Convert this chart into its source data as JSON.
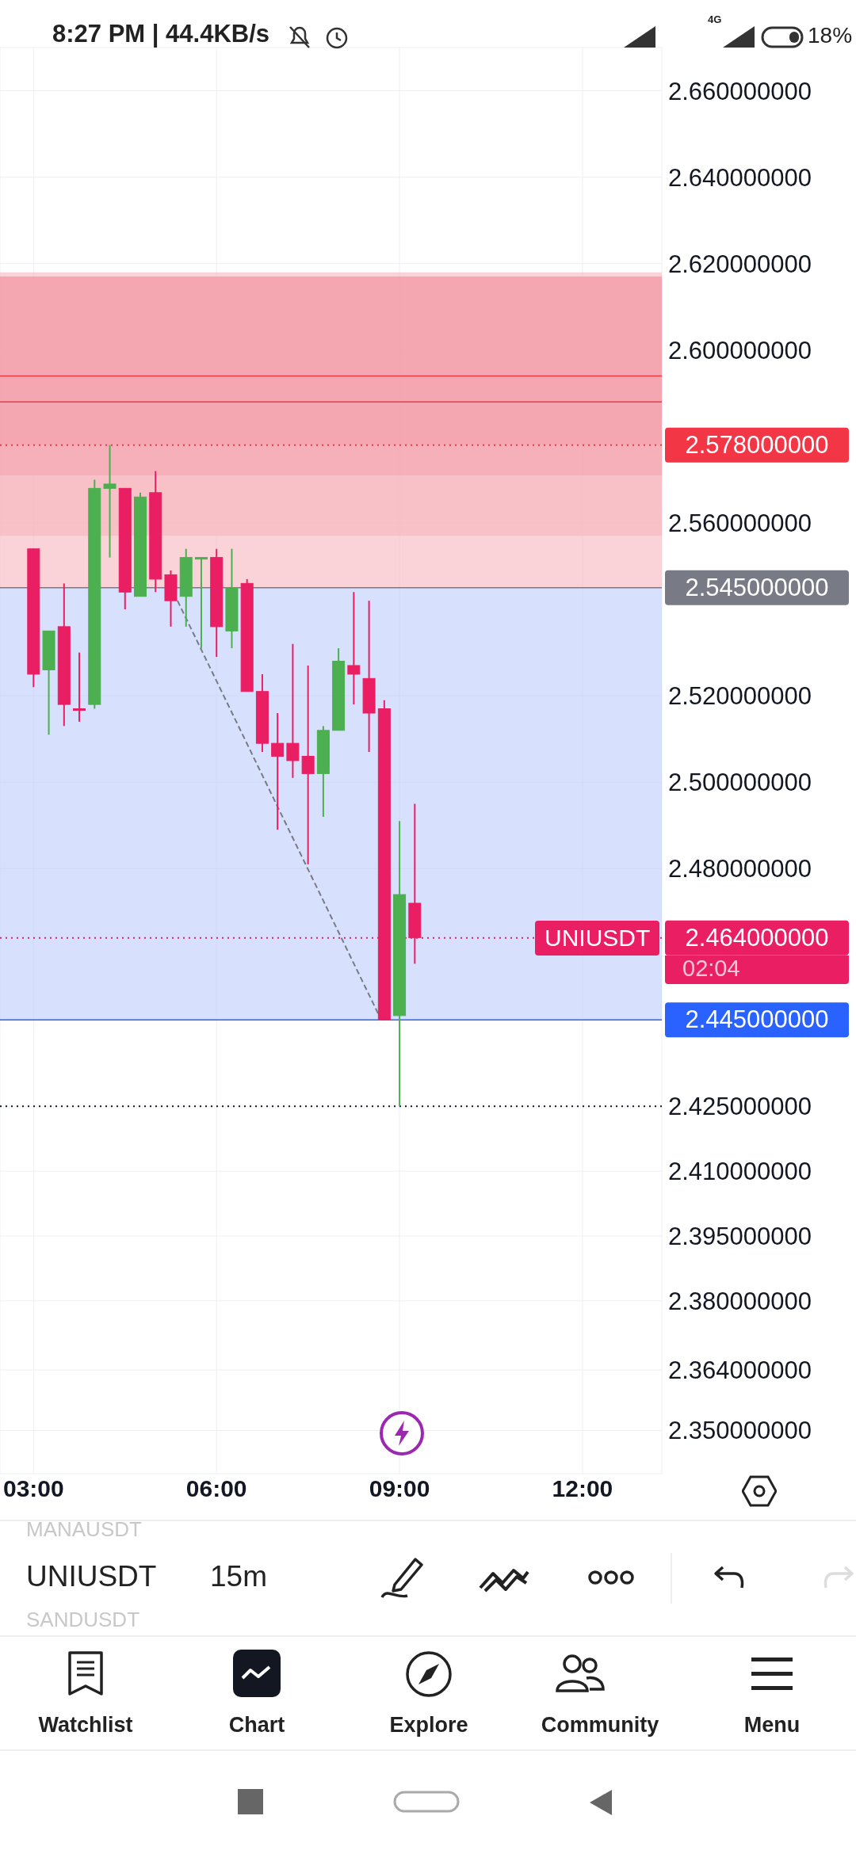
{
  "chart_data": {
    "type": "candlestick",
    "x": [
      3,
      3.25,
      3.5,
      3.75,
      4,
      4.25,
      4.5,
      4.75,
      5,
      5.25,
      5.5,
      5.75,
      6,
      6.25,
      6.5,
      6.75,
      7,
      7.25,
      7.5,
      7.75,
      8,
      8.25,
      8.5,
      8.75,
      9,
      9.25
    ],
    "ohlc": [
      [
        2.554,
        2.554,
        2.522,
        2.525
      ],
      [
        2.526,
        2.535,
        2.511,
        2.535
      ],
      [
        2.536,
        2.546,
        2.513,
        2.518
      ],
      [
        2.517,
        2.53,
        2.514,
        2.517
      ],
      [
        2.518,
        2.57,
        2.517,
        2.568
      ],
      [
        2.568,
        2.578,
        2.552,
        2.569
      ],
      [
        2.568,
        2.568,
        2.54,
        2.544
      ],
      [
        2.543,
        2.567,
        2.543,
        2.566
      ],
      [
        2.567,
        2.572,
        2.544,
        2.547
      ],
      [
        2.548,
        2.549,
        2.536,
        2.542
      ],
      [
        2.543,
        2.554,
        2.536,
        2.552
      ],
      [
        2.552,
        2.552,
        2.531,
        2.552
      ],
      [
        2.552,
        2.554,
        2.529,
        2.536
      ],
      [
        2.535,
        2.554,
        2.531,
        2.545
      ],
      [
        2.546,
        2.547,
        2.521,
        2.521
      ],
      [
        2.521,
        2.525,
        2.507,
        2.509
      ],
      [
        2.509,
        2.516,
        2.489,
        2.506
      ],
      [
        2.509,
        2.532,
        2.501,
        2.505
      ],
      [
        2.506,
        2.527,
        2.481,
        2.502
      ],
      [
        2.502,
        2.513,
        2.492,
        2.512
      ],
      [
        2.512,
        2.531,
        2.512,
        2.528
      ],
      [
        2.527,
        2.544,
        2.518,
        2.525
      ],
      [
        2.524,
        2.542,
        2.507,
        2.516
      ],
      [
        2.517,
        2.519,
        2.445,
        2.445
      ],
      [
        2.446,
        2.491,
        2.425,
        2.474
      ],
      [
        2.472,
        2.495,
        2.458,
        2.464
      ]
    ],
    "colors": [
      "#e91e63",
      "#4caf50",
      "#e91e63",
      "#e91e63",
      "#4caf50",
      "#4caf50",
      "#e91e63",
      "#4caf50",
      "#e91e63",
      "#e91e63",
      "#4caf50",
      "#4caf50",
      "#e91e63",
      "#4caf50",
      "#e91e63",
      "#e91e63",
      "#e91e63",
      "#e91e63",
      "#e91e63",
      "#4caf50",
      "#4caf50",
      "#e91e63",
      "#e91e63",
      "#e91e63",
      "#4caf50",
      "#e91e63"
    ],
    "series": [
      {
        "type": "line",
        "x": [
          5.36,
          8.7
        ],
        "values": [
          2.542,
          2.445
        ],
        "color": "#787b86",
        "line_style": "dashed",
        "marker": "none"
      }
    ],
    "xlim": [
      2.45,
      13.3
    ],
    "xticks": [
      {
        "value": 3,
        "label": "03:00"
      },
      {
        "value": 6,
        "label": "06:00"
      },
      {
        "value": 9,
        "label": "09:00"
      },
      {
        "value": 12,
        "label": "12:00"
      }
    ],
    "ylim": [
      2.34,
      2.67
    ],
    "yticks": [
      {
        "value": 2.35,
        "label": "2.350000000"
      },
      {
        "value": 2.364,
        "label": "2.364000000"
      },
      {
        "value": 2.38,
        "label": "2.380000000"
      },
      {
        "value": 2.395,
        "label": "2.395000000"
      },
      {
        "value": 2.41,
        "label": "2.410000000"
      },
      {
        "value": 2.425,
        "label": "2.425000000"
      },
      {
        "value": 2.48,
        "label": "2.480000000"
      },
      {
        "value": 2.5,
        "label": "2.500000000"
      },
      {
        "value": 2.52,
        "label": "2.520000000"
      },
      {
        "value": 2.56,
        "label": "2.560000000"
      },
      {
        "value": 2.6,
        "label": "2.600000000"
      },
      {
        "value": 2.62,
        "label": "2.620000000"
      },
      {
        "value": 2.64,
        "label": "2.640000000"
      },
      {
        "value": 2.66,
        "label": "2.660000000"
      }
    ],
    "grid": true,
    "bands": [
      {
        "axis": "y",
        "from": 2.557,
        "to": 2.618,
        "color": "#f7b6be"
      },
      {
        "axis": "y",
        "from": 2.571,
        "to": 2.617,
        "color": "#f28b98"
      },
      {
        "axis": "y",
        "from": 2.545,
        "to": 2.578,
        "color": "#f7b6be"
      },
      {
        "axis": "y",
        "from": 2.445,
        "to": 2.545,
        "color": "#bccdfb"
      }
    ],
    "ref_lines": [
      {
        "axis": "y",
        "value": 2.578,
        "label": "2.578000000",
        "color": "#f23645",
        "line_style": "dotted"
      },
      {
        "axis": "y",
        "value": 2.545,
        "label": "2.545000000",
        "color": "#787b86",
        "line_style": "solid"
      },
      {
        "axis": "y",
        "value": 2.464,
        "label": "2.464000000",
        "color": "#e91e63",
        "line_style": "dotted"
      },
      {
        "axis": "y",
        "value": 2.445,
        "label": "2.445000000",
        "color": "#2962ff",
        "line_style": "solid"
      },
      {
        "axis": "y",
        "value": 2.425,
        "color": "#131722",
        "line_style": "dotted"
      },
      {
        "axis": "y",
        "value": 2.594,
        "color": "#f23645",
        "line_style": "solid"
      },
      {
        "axis": "y",
        "value": 2.588,
        "color": "#f23645",
        "line_style": "solid"
      }
    ],
    "annotations": [
      "8:27 PM | 44.4KB/s",
      "4G",
      "18%",
      {
        "text": "UNIUSDT",
        "y": 2.464
      },
      "02:04",
      "MANAUSDT",
      "UNIUSDT",
      "15m",
      "SANDUSDT",
      "Watchlist",
      "Chart",
      "Explore",
      "Community",
      "Menu"
    ]
  }
}
